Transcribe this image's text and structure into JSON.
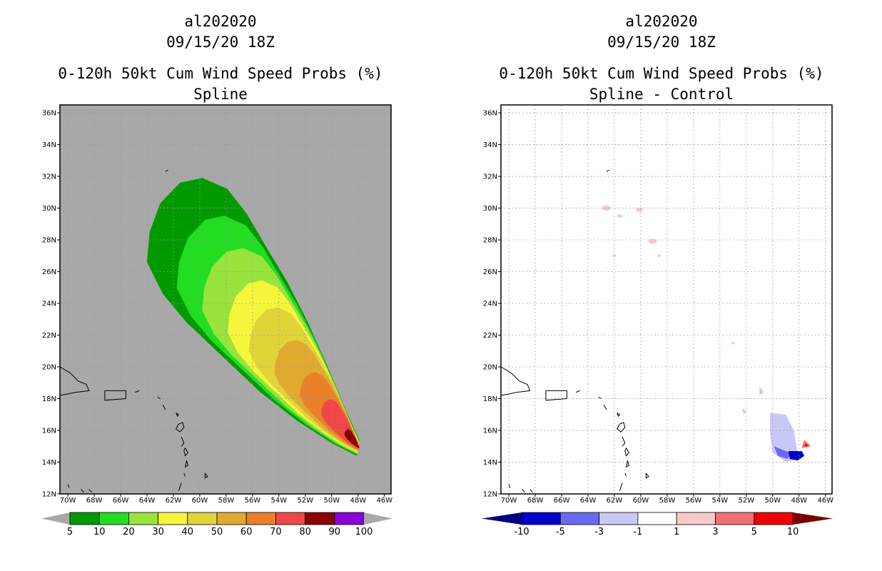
{
  "panels": [
    {
      "id": "spline",
      "title_line1": "al202020",
      "title_line2": "09/15/20 18Z",
      "title_line3": "0-120h 50kt Cum Wind Speed Probs (%)",
      "title_line4": "Spline",
      "background_color": "#a8a8a8",
      "colorbar_labels": [
        "5",
        "10",
        "20",
        "30",
        "40",
        "50",
        "60",
        "70",
        "80",
        "90",
        "100"
      ],
      "colorbar_colors": [
        "#009900",
        "#22dd22",
        "#99e33d",
        "#f5f53c",
        "#e0d438",
        "#e0aa30",
        "#ea8028",
        "#f04848",
        "#8b0000",
        "#8a00d8"
      ]
    },
    {
      "id": "spline-control",
      "title_line1": "al202020",
      "title_line2": "09/15/20 18Z",
      "title_line3": "0-120h 50kt Cum Wind Speed Probs (%)",
      "title_line4": "Spline - Control",
      "background_color": "#ffffff",
      "colorbar_labels": [
        "-10",
        "-5",
        "-3",
        "-1",
        "1",
        "3",
        "5",
        "10"
      ],
      "colorbar_colors": [
        "#0000cc",
        "#6a6aee",
        "#c8c8f8",
        "#ffffff",
        "#f8c8c8",
        "#f07070",
        "#ee0000"
      ]
    }
  ],
  "map": {
    "lat_labels": [
      "12N",
      "14N",
      "16N",
      "18N",
      "20N",
      "22N",
      "24N",
      "26N",
      "28N",
      "30N",
      "32N",
      "34N",
      "36N"
    ],
    "lon_labels": [
      "70W",
      "68W",
      "66W",
      "64W",
      "62W",
      "60W",
      "58W",
      "56W",
      "54W",
      "52W",
      "50W",
      "48W",
      "46W"
    ],
    "lat_range": [
      12,
      36.5
    ],
    "lon_range": [
      -70.6,
      -45.5
    ]
  }
}
